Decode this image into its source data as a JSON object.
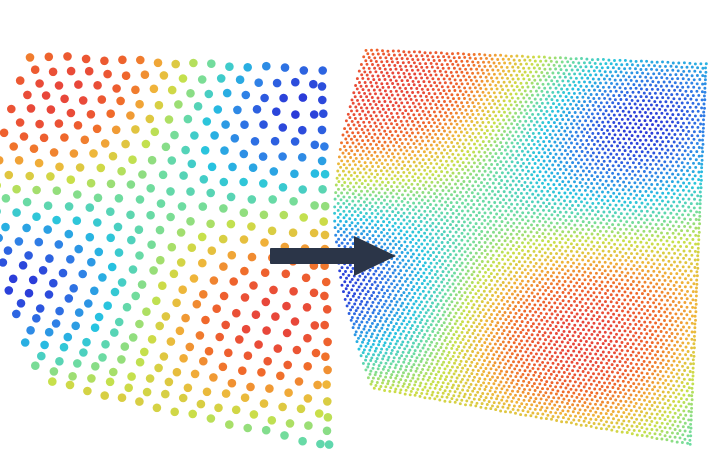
{
  "figure": {
    "description_kind": "point-cloud-upsampling",
    "left_panel": {
      "cloud": "sparse",
      "shape": "curved-surface-patch",
      "point_style": "dots"
    },
    "right_panel": {
      "cloud": "dense",
      "shape": "curved-surface-patch",
      "point_style": "small-dots"
    },
    "arrow": {
      "direction": "right",
      "color": "#2b3548"
    },
    "colormap": [
      "#2a2fd6",
      "#2f7fe6",
      "#27c3e0",
      "#6fdca0",
      "#c8e04a",
      "#f0b43a",
      "#f06a2a",
      "#e8473a"
    ]
  }
}
